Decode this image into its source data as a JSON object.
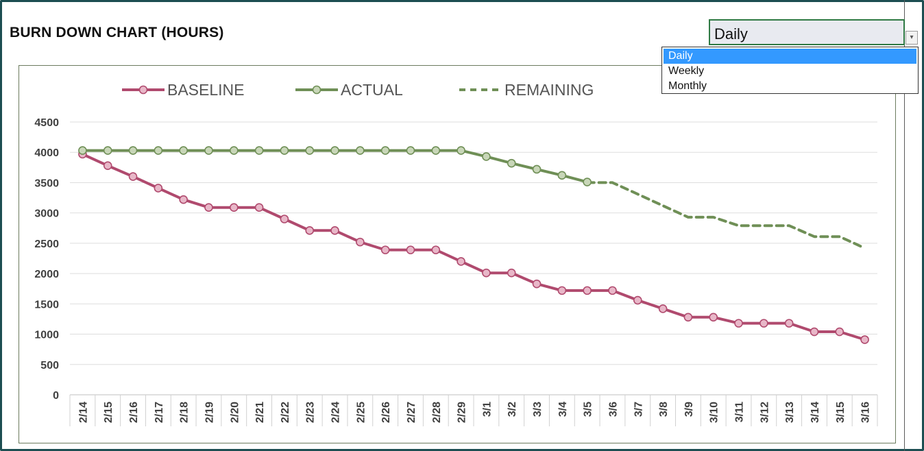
{
  "page": {
    "title": "BURN DOWN CHART (HOURS)"
  },
  "dropdown": {
    "selected": "Daily",
    "options": [
      "Daily",
      "Weekly",
      "Monthly"
    ],
    "highlighted_index": 0,
    "arrow_icon": "chevron-down-icon"
  },
  "colors": {
    "baseline": "#b04a6e",
    "baseline_marker_fill": "#e8b7c8",
    "actual": "#6f8f56",
    "actual_marker_fill": "#c8d6b8",
    "remaining": "#6f8f56",
    "frame": "#1d4e52"
  },
  "chart_data": {
    "type": "line",
    "title": "BURN DOWN CHART (HOURS)",
    "xlabel": "",
    "ylabel": "",
    "ylim": [
      0,
      4500
    ],
    "yticks": [
      0,
      500,
      1000,
      1500,
      2000,
      2500,
      3000,
      3500,
      4000,
      4500
    ],
    "grid": true,
    "legend_placement": "top",
    "categories": [
      "2/14",
      "2/15",
      "2/16",
      "2/17",
      "2/18",
      "2/19",
      "2/20",
      "2/21",
      "2/22",
      "2/23",
      "2/24",
      "2/25",
      "2/26",
      "2/27",
      "2/28",
      "2/29",
      "3/1",
      "3/2",
      "3/3",
      "3/4",
      "3/5",
      "3/6",
      "3/7",
      "3/8",
      "3/9",
      "3/10",
      "3/11",
      "3/12",
      "3/13",
      "3/14",
      "3/15",
      "3/16"
    ],
    "series": [
      {
        "name": "BASELINE",
        "style": "solid-markers",
        "values": [
          3970,
          3780,
          3600,
          3410,
          3220,
          3090,
          3090,
          3090,
          2900,
          2710,
          2710,
          2520,
          2390,
          2390,
          2390,
          2200,
          2010,
          2010,
          1830,
          1720,
          1720,
          1720,
          1560,
          1420,
          1280,
          1280,
          1180,
          1180,
          1180,
          1040,
          1040,
          910
        ]
      },
      {
        "name": "ACTUAL",
        "style": "solid-markers",
        "values": [
          4030,
          4030,
          4030,
          4030,
          4030,
          4030,
          4030,
          4030,
          4030,
          4030,
          4030,
          4030,
          4030,
          4030,
          4030,
          4030,
          3930,
          3820,
          3720,
          3620,
          3510,
          null,
          null,
          null,
          null,
          null,
          null,
          null,
          null,
          null,
          null,
          null
        ]
      },
      {
        "name": "REMAINING",
        "style": "dashed",
        "values": [
          null,
          null,
          null,
          null,
          null,
          null,
          null,
          null,
          null,
          null,
          null,
          null,
          null,
          null,
          null,
          null,
          null,
          null,
          null,
          null,
          3500,
          3500,
          3310,
          3120,
          2930,
          2930,
          2790,
          2790,
          2790,
          2610,
          2610,
          2420
        ]
      }
    ]
  }
}
